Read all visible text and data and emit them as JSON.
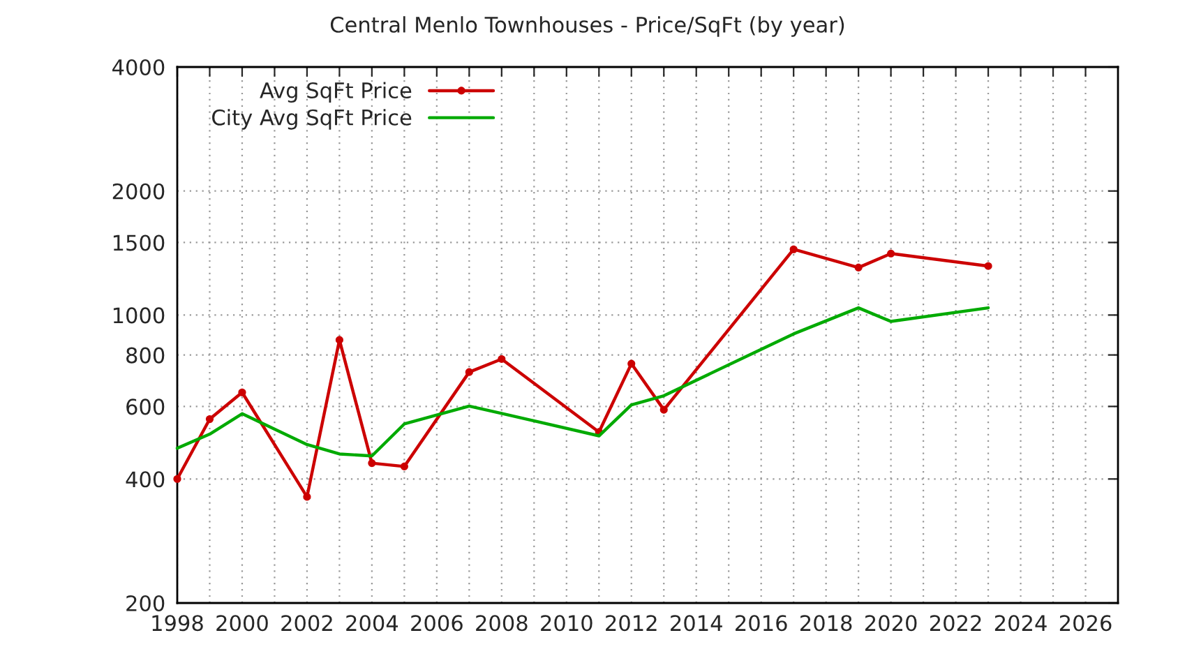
{
  "chart_data": {
    "type": "line",
    "title": "Central Menlo Townhouses - Price/SqFt (by year)",
    "log": "y",
    "grid": true,
    "legend": "top left",
    "xlim": [
      1998,
      2027
    ],
    "ylim": [
      200,
      4000
    ],
    "xticks": [
      1998,
      {
        "value": 1999,
        "label": null
      },
      2000,
      {
        "value": 2001,
        "label": null
      },
      2002,
      {
        "value": 2003,
        "label": null
      },
      2004,
      {
        "value": 2005,
        "label": null
      },
      2006,
      {
        "value": 2007,
        "label": null
      },
      2008,
      {
        "value": 2009,
        "label": null
      },
      2010,
      {
        "value": 2011,
        "label": null
      },
      2012,
      {
        "value": 2013,
        "label": null
      },
      2014,
      {
        "value": 2015,
        "label": null
      },
      2016,
      {
        "value": 2017,
        "label": null
      },
      2018,
      {
        "value": 2019,
        "label": null
      },
      2020,
      {
        "value": 2021,
        "label": null
      },
      2022,
      {
        "value": 2023,
        "label": null
      },
      2024,
      {
        "value": 2025,
        "label": null
      },
      2026
    ],
    "yticks": [
      200,
      400,
      600,
      800,
      1000,
      1500,
      2000,
      4000
    ],
    "series": [
      {
        "name": "Avg SqFt Price",
        "color": "#cc0000",
        "marker": "circle",
        "x": [
          1998,
          1999,
          2000,
          2002,
          2003,
          2004,
          2005,
          2007,
          2008,
          2011,
          2012,
          2013,
          2017,
          2019,
          2020,
          2023
        ],
        "values": [
          400,
          559,
          649,
          362,
          870,
          437,
          429,
          727,
          782,
          520,
          762,
          589,
          1444,
          1304,
          1410,
          1315
        ]
      },
      {
        "name": "City Avg SqFt Price",
        "color": "#00aa00",
        "marker": "none",
        "x": [
          1998,
          1999,
          2000,
          2002,
          2003,
          2004,
          2005,
          2007,
          2008,
          2011,
          2012,
          2013,
          2017,
          2019,
          2020,
          2023
        ],
        "values": [
          475,
          514,
          576,
          485,
          460,
          455,
          544,
          601,
          577,
          509,
          605,
          637,
          900,
          1041,
          965,
          1041
        ]
      }
    ]
  }
}
